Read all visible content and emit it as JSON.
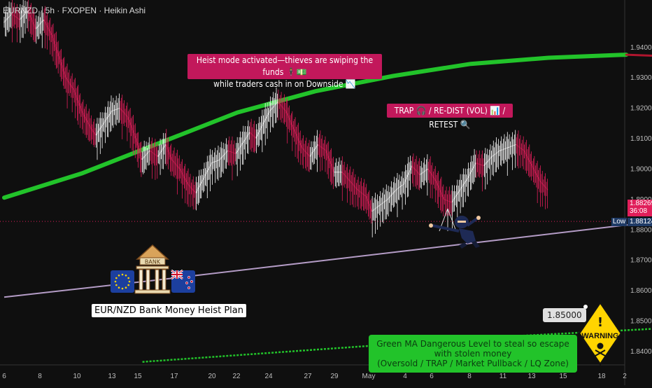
{
  "header": {
    "title": "EURNZD · 5h · FXOPEN · Heikin Ashi"
  },
  "annotations": {
    "heist_callout_line1": "Heist mode activated—thieves are swiping the funds 🕴️💵",
    "heist_callout_line2": "while traders cash in on Downside 📉",
    "trap_callout": "TRAP 🎧 / RE-DIST (VOL) 📊 / RETEST 🔍",
    "plan_label": "EUR/NZD Bank Money Heist Plan",
    "bank_sign": "BANK",
    "green_note_line1": "Green MA Dangerous Level to steal so escape with stolen money",
    "green_note_line2": "(Oversold / TRAP / Market Pullback / LQ Zone)",
    "target_price": "1.85000",
    "warning_label": "WARNING"
  },
  "price_tags": {
    "last_price": "1.88269",
    "countdown": "36:08",
    "low_label": "Low",
    "low_price": "1.88124"
  },
  "colors": {
    "background": "#0f0f0f",
    "bull_candle": "#ffffff",
    "bear_candle": "#e01e5a",
    "ma_rising": "#22c32a",
    "ma_falling": "#b0152e",
    "long_ma": "#b49cc6",
    "callout": "#c2185b",
    "green_note": "#22c32a",
    "last_price_tag": "#e01e5a",
    "low_tag": "#1f3b66"
  },
  "chart_data": {
    "type": "candlestick",
    "style": "Heikin Ashi",
    "symbol": "EURNZD",
    "timeframe": "5h",
    "broker": "FXOPEN",
    "x_tick_labels": [
      "6",
      "8",
      "10",
      "13",
      "15",
      "17",
      "20",
      "22",
      "24",
      "27",
      "29",
      "May",
      "4",
      "6",
      "8",
      "11",
      "13",
      "15",
      "18",
      "2"
    ],
    "y_tick_labels": [
      "1.94000",
      "1.93000",
      "1.92000",
      "1.91000",
      "1.90000",
      "1.89000",
      "1.88000",
      "1.87000",
      "1.86000",
      "1.85000",
      "1.84000"
    ],
    "ylim": [
      1.8355,
      1.9555
    ],
    "grid": false,
    "price_path": [
      [
        0,
        1.948
      ],
      [
        8,
        1.951
      ],
      [
        16,
        1.949
      ],
      [
        24,
        1.952
      ],
      [
        32,
        1.946
      ],
      [
        40,
        1.949
      ],
      [
        48,
        1.944
      ],
      [
        54,
        1.938
      ],
      [
        62,
        1.93
      ],
      [
        70,
        1.926
      ],
      [
        78,
        1.919
      ],
      [
        86,
        1.914
      ],
      [
        92,
        1.911
      ],
      [
        100,
        1.915
      ],
      [
        108,
        1.919
      ],
      [
        116,
        1.92
      ],
      [
        124,
        1.917
      ],
      [
        132,
        1.91
      ],
      [
        138,
        1.903
      ],
      [
        146,
        1.906
      ],
      [
        154,
        1.904
      ],
      [
        162,
        1.908
      ],
      [
        168,
        1.903
      ],
      [
        176,
        1.9
      ],
      [
        184,
        1.895
      ],
      [
        192,
        1.892
      ],
      [
        200,
        1.897
      ],
      [
        208,
        1.902
      ],
      [
        216,
        1.903
      ],
      [
        224,
        1.906
      ],
      [
        232,
        1.905
      ],
      [
        240,
        1.909
      ],
      [
        246,
        1.912
      ],
      [
        252,
        1.91
      ],
      [
        258,
        1.914
      ],
      [
        266,
        1.919
      ],
      [
        274,
        1.922
      ],
      [
        282,
        1.919
      ],
      [
        290,
        1.913
      ],
      [
        298,
        1.907
      ],
      [
        306,
        1.904
      ],
      [
        314,
        1.908
      ],
      [
        322,
        1.906
      ],
      [
        330,
        1.899
      ],
      [
        338,
        1.899
      ],
      [
        346,
        1.896
      ],
      [
        354,
        1.893
      ],
      [
        362,
        1.891
      ],
      [
        368,
        1.886
      ],
      [
        376,
        1.888
      ],
      [
        384,
        1.89
      ],
      [
        392,
        1.893
      ],
      [
        400,
        1.895
      ],
      [
        408,
        1.901
      ],
      [
        416,
        1.898
      ],
      [
        424,
        1.9
      ],
      [
        432,
        1.896
      ],
      [
        440,
        1.89
      ],
      [
        448,
        1.889
      ],
      [
        456,
        1.893
      ],
      [
        464,
        1.897
      ],
      [
        472,
        1.902
      ],
      [
        480,
        1.901
      ],
      [
        488,
        1.904
      ],
      [
        496,
        1.906
      ],
      [
        504,
        1.907
      ],
      [
        512,
        1.908
      ],
      [
        520,
        1.906
      ],
      [
        528,
        1.901
      ],
      [
        536,
        1.896
      ],
      [
        544,
        1.893
      ]
    ],
    "lines": [
      {
        "name": "",
        "color": "#22c32a",
        "points": [
          [
            -36,
            1.8905
          ],
          [
            -27,
            1.8985
          ],
          [
            -18,
            1.9085
          ],
          [
            -9,
            1.9185
          ],
          [
            0,
            1.9255
          ],
          [
            9,
            1.9305
          ],
          [
            18,
            1.9345
          ],
          [
            27,
            1.9365
          ],
          [
            36,
            1.9375
          ],
          [
            45,
            1.9365
          ],
          [
            54,
            1.9345
          ],
          [
            63,
            1.9325
          ],
          [
            70,
            1.9305
          ]
        ]
      },
      {
        "name": "",
        "color": "#b49cc6",
        "points": [
          [
            -36,
            1.8578
          ],
          [
            -18,
            1.8635
          ],
          [
            0,
            1.8695
          ],
          [
            18,
            1.8755
          ],
          [
            36,
            1.8815
          ],
          [
            54,
            1.8865
          ],
          [
            66,
            1.8915
          ]
        ]
      },
      {
        "name": "",
        "color": "#22c32a",
        "dashed": true,
        "points": [
          [
            -20,
            1.8365
          ],
          [
            0,
            1.8405
          ],
          [
            20,
            1.8445
          ],
          [
            40,
            1.8475
          ],
          [
            60,
            1.8485
          ]
        ]
      },
      {
        "name": "",
        "color": "#eeee55",
        "dashed": true,
        "points": [
          [
            67,
            1.8935
          ],
          [
            71,
            1.8915
          ],
          [
            73,
            1.8855
          ],
          [
            76,
            1.8735
          ],
          [
            78,
            1.8615
          ],
          [
            80,
            1.8505
          ]
        ]
      }
    ],
    "reference_lines": [
      {
        "label": "1.88269",
        "value": 1.88269,
        "color": "#e01e5a",
        "style": "dotted"
      }
    ]
  }
}
